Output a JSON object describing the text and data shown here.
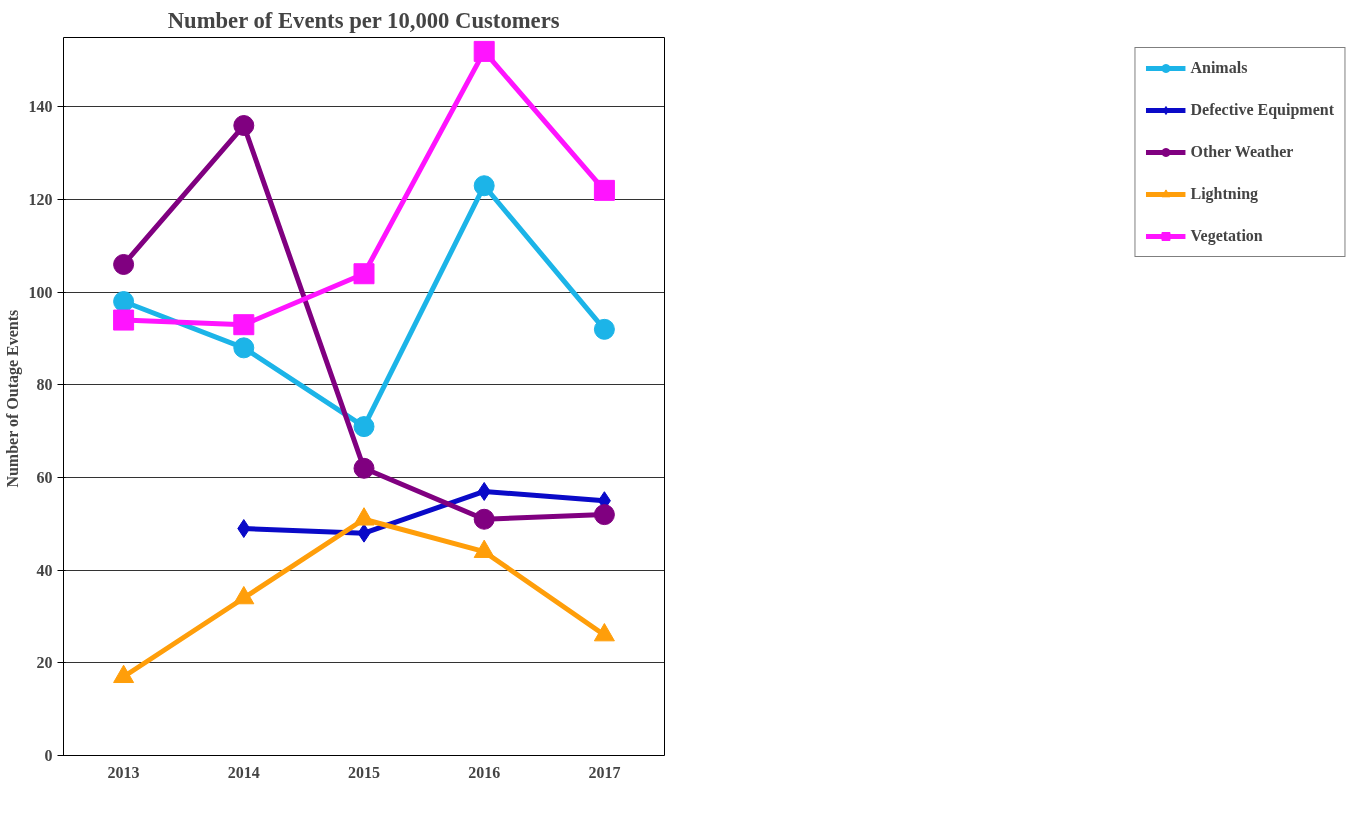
{
  "chart_data": {
    "type": "line",
    "title": "Number of Events per 10,000 Customers",
    "ylabel": "Number  of Outage Events",
    "categories": [
      "2013",
      "2014",
      "2015",
      "2016",
      "2017"
    ],
    "series": [
      {
        "name": "Animals",
        "color": "#1cb4e8",
        "marker": "circle",
        "values": [
          98,
          88,
          71,
          123,
          92
        ]
      },
      {
        "name": "Defective Equipment",
        "color": "#0a0ac8",
        "marker": "diamond",
        "values": [
          null,
          49,
          48,
          57,
          55
        ]
      },
      {
        "name": "Other Weather",
        "color": "#800080",
        "marker": "circle",
        "values": [
          106,
          136,
          62,
          51,
          52
        ]
      },
      {
        "name": "Lightning",
        "color": "#ff9e0a",
        "marker": "triangle",
        "values": [
          17,
          34,
          51,
          44,
          26
        ]
      },
      {
        "name": "Vegetation",
        "color": "#ff14ff",
        "marker": "square",
        "values": [
          94,
          93,
          104,
          152,
          122
        ]
      }
    ],
    "ylim": [
      0,
      155
    ],
    "yticks": [
      0,
      20,
      40,
      60,
      80,
      100,
      120,
      140
    ],
    "grid": "y",
    "legend": "right"
  }
}
